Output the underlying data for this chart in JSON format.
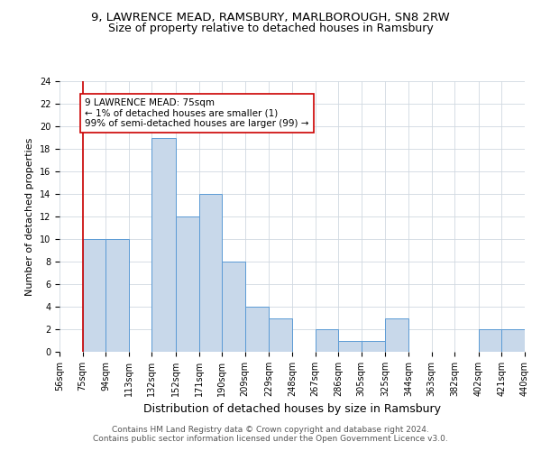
{
  "title": "9, LAWRENCE MEAD, RAMSBURY, MARLBOROUGH, SN8 2RW",
  "subtitle": "Size of property relative to detached houses in Ramsbury",
  "xlabel": "Distribution of detached houses by size in Ramsbury",
  "ylabel": "Number of detached properties",
  "bar_edges": [
    56,
    75,
    94,
    113,
    132,
    152,
    171,
    190,
    209,
    229,
    248,
    267,
    286,
    305,
    325,
    344,
    363,
    382,
    402,
    421,
    440
  ],
  "bar_heights": [
    0,
    10,
    10,
    0,
    19,
    12,
    14,
    8,
    4,
    3,
    0,
    2,
    1,
    1,
    3,
    0,
    0,
    0,
    2,
    2
  ],
  "bar_color": "#c8d8ea",
  "bar_edgecolor": "#5b9bd5",
  "property_line_x": 75,
  "property_line_color": "#cc0000",
  "annotation_text": "9 LAWRENCE MEAD: 75sqm\n← 1% of detached houses are smaller (1)\n99% of semi-detached houses are larger (99) →",
  "annotation_box_color": "#ffffff",
  "annotation_box_edgecolor": "#cc0000",
  "tick_labels": [
    "56sqm",
    "75sqm",
    "94sqm",
    "113sqm",
    "132sqm",
    "152sqm",
    "171sqm",
    "190sqm",
    "209sqm",
    "229sqm",
    "248sqm",
    "267sqm",
    "286sqm",
    "305sqm",
    "325sqm",
    "344sqm",
    "363sqm",
    "382sqm",
    "402sqm",
    "421sqm",
    "440sqm"
  ],
  "ylim": [
    0,
    24
  ],
  "yticks": [
    0,
    2,
    4,
    6,
    8,
    10,
    12,
    14,
    16,
    18,
    20,
    22,
    24
  ],
  "footer_line1": "Contains HM Land Registry data © Crown copyright and database right 2024.",
  "footer_line2": "Contains public sector information licensed under the Open Government Licence v3.0.",
  "bg_color": "#ffffff",
  "grid_color": "#d0d8e0",
  "title_fontsize": 9.5,
  "subtitle_fontsize": 9,
  "xlabel_fontsize": 9,
  "ylabel_fontsize": 8,
  "tick_fontsize": 7,
  "annotation_fontsize": 7.5,
  "footer_fontsize": 6.5
}
